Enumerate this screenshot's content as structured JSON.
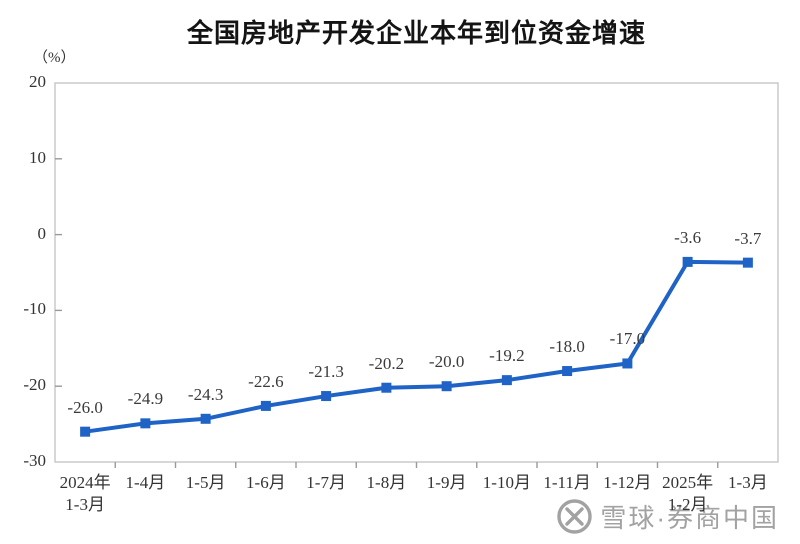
{
  "chart_data": {
    "type": "line",
    "title": "全国房地产开发企业本年到位资金增速",
    "unit_label": "（%）",
    "categories": [
      [
        "2024年",
        "1-3月"
      ],
      [
        "1-4月"
      ],
      [
        "1-5月"
      ],
      [
        "1-6月"
      ],
      [
        "1-7月"
      ],
      [
        "1-8月"
      ],
      [
        "1-9月"
      ],
      [
        "1-10月"
      ],
      [
        "1-11月"
      ],
      [
        "1-12月"
      ],
      [
        "2025年",
        "1-2月"
      ],
      [
        "1-3月"
      ]
    ],
    "values": [
      -26.0,
      -24.9,
      -24.3,
      -22.6,
      -21.3,
      -20.2,
      -20.0,
      -19.2,
      -18.0,
      -17.0,
      -3.6,
      -3.7
    ],
    "point_labels": [
      "-26.0",
      "-24.9",
      "-24.3",
      "-22.6",
      "-21.3",
      "-20.2",
      "-20.0",
      "-19.2",
      "-18.0",
      "-17.0",
      "-3.6",
      "-3.7"
    ],
    "ylim": [
      -30,
      20
    ],
    "yticks": [
      20,
      10,
      0,
      -10,
      -20,
      -30
    ],
    "ytick_labels": [
      "20",
      "10",
      "0",
      "-10",
      "-20",
      "-30"
    ],
    "grid": "off",
    "legend": "none",
    "line_color": "#1E63C5",
    "marker": "square",
    "text_color": "#333333",
    "axis_color": "#c6c6c6",
    "tick_color": "#9a9a9a"
  },
  "watermark": {
    "logo": "xueqiu-logo",
    "text": "雪球·券商中国",
    "color": "#a2a2a2"
  }
}
